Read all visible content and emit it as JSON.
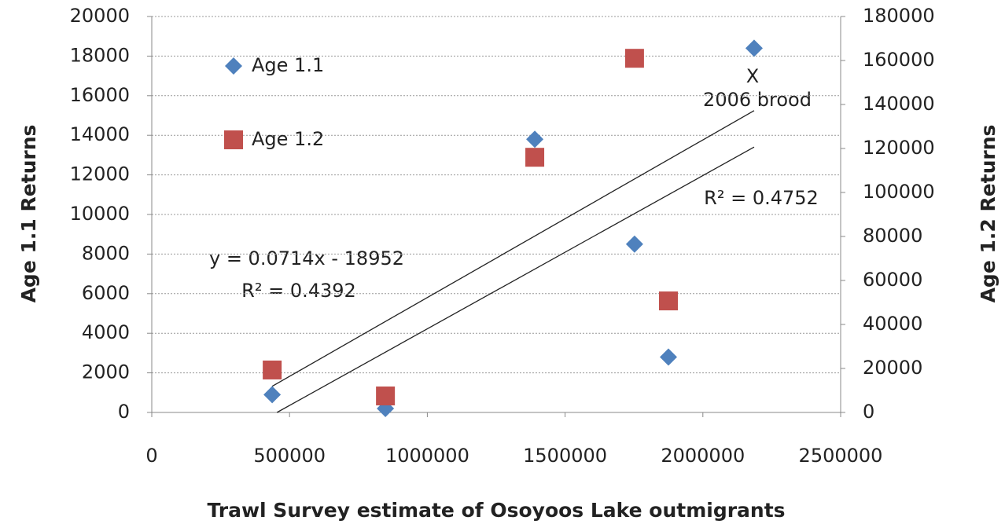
{
  "chart_data": {
    "type": "scatter",
    "xlabel": "Trawl Survey estimate of Osoyoos Lake outmigrants",
    "ylabel": "Age  1.1 Returns",
    "y2label": "Age 1.2 Returns",
    "xlim": [
      0,
      2500000
    ],
    "xticks": [
      0,
      500000,
      1000000,
      1500000,
      2000000,
      2500000
    ],
    "ylim": [
      0,
      20000
    ],
    "yticks": [
      0,
      2000,
      4000,
      6000,
      8000,
      10000,
      12000,
      14000,
      16000,
      18000,
      20000
    ],
    "y2lim": [
      0,
      180000
    ],
    "y2ticks": [
      0,
      20000,
      40000,
      60000,
      80000,
      100000,
      120000,
      140000,
      160000,
      180000
    ],
    "grid": true,
    "legend": "top-left",
    "trendline": true,
    "series": [
      {
        "name": "Age 1.1",
        "color": "#4f81bd",
        "marker": "diamond",
        "x": [
          437000,
          848000,
          1390000,
          1752000,
          1875000,
          2186000
        ],
        "values": [
          900,
          200,
          13800,
          8500,
          2800,
          18400
        ]
      },
      {
        "name": "Age 1.2",
        "color": "#c0504d",
        "marker": "square",
        "axis": "y2",
        "x": [
          437000,
          848000,
          1390000,
          1752000,
          1875000
        ],
        "values": [
          19300,
          7500,
          116000,
          161000,
          50700
        ]
      }
    ],
    "annotations": [
      "y = 0.0714x - 18952",
      "R² = 0.4392",
      "R² = 0.4752",
      "X",
      "2006 brood"
    ]
  }
}
